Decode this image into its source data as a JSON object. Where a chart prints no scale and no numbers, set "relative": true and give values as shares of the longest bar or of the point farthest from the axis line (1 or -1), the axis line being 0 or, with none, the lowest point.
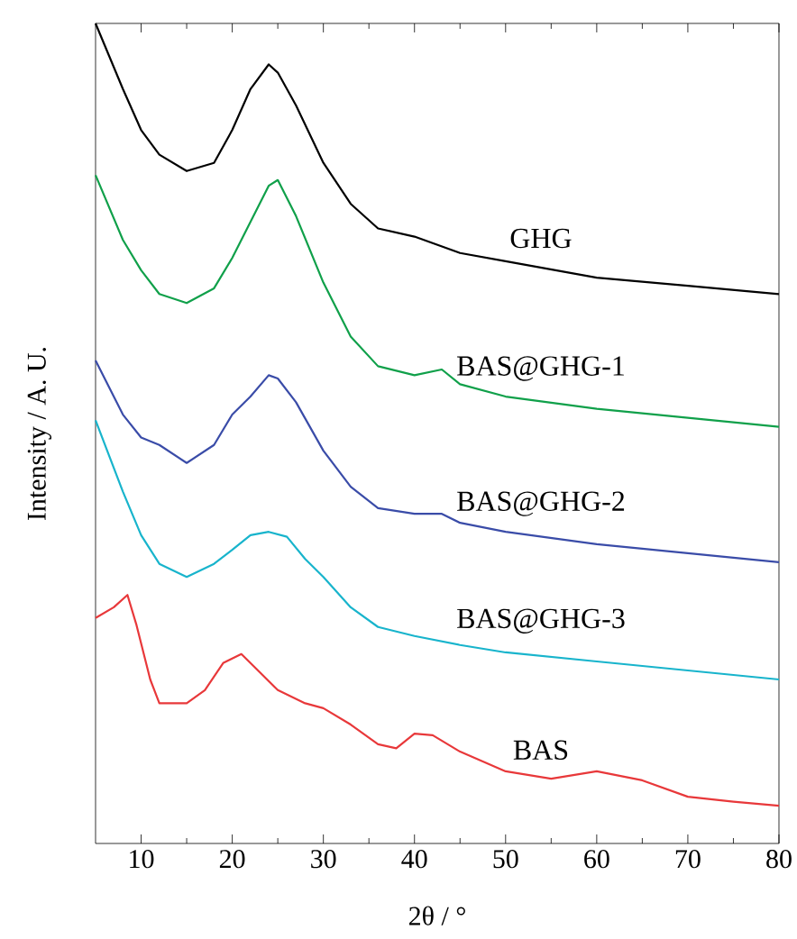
{
  "chart_data": {
    "type": "line",
    "xlabel": "2θ / °",
    "ylabel": "Intensity / A. U.",
    "relative": true,
    "xlim": [
      5,
      80
    ],
    "xticks": [
      10,
      20,
      30,
      40,
      50,
      60,
      70,
      80
    ],
    "grid": false,
    "marker": "none",
    "line_style": "solid",
    "series": [
      {
        "name": "GHG",
        "color": "#000000",
        "x": [
          5,
          8,
          10,
          12,
          15,
          18,
          20,
          22,
          24,
          25,
          27,
          30,
          33,
          36,
          40,
          45,
          50,
          60,
          70,
          80
        ],
        "values": [
          1.0,
          0.92,
          0.87,
          0.84,
          0.82,
          0.83,
          0.87,
          0.92,
          0.95,
          0.94,
          0.9,
          0.83,
          0.78,
          0.75,
          0.74,
          0.72,
          0.71,
          0.69,
          0.68,
          0.67
        ]
      },
      {
        "name": "BAS@GHG-1",
        "color": "#10a04a",
        "x": [
          5,
          8,
          10,
          12,
          15,
          18,
          20,
          22,
          24,
          25,
          27,
          30,
          33,
          36,
          40,
          43,
          45,
          50,
          60,
          70,
          80
        ],
        "values": [
          0.815,
          0.736,
          0.699,
          0.67,
          0.659,
          0.677,
          0.714,
          0.758,
          0.802,
          0.809,
          0.765,
          0.684,
          0.618,
          0.582,
          0.571,
          0.578,
          0.56,
          0.545,
          0.53,
          0.519,
          0.508
        ]
      },
      {
        "name": "BAS@GHG-2",
        "color": "#3a4ca8",
        "x": [
          5,
          8,
          10,
          12,
          15,
          18,
          20,
          22,
          24,
          25,
          27,
          30,
          33,
          36,
          40,
          43,
          45,
          50,
          60,
          70,
          80
        ],
        "values": [
          0.589,
          0.523,
          0.495,
          0.486,
          0.464,
          0.486,
          0.523,
          0.545,
          0.571,
          0.567,
          0.538,
          0.479,
          0.435,
          0.409,
          0.402,
          0.402,
          0.391,
          0.38,
          0.365,
          0.354,
          0.343
        ]
      },
      {
        "name": "BAS@GHG-3",
        "color": "#18b4cc",
        "x": [
          5,
          8,
          10,
          12,
          15,
          18,
          20,
          22,
          24,
          26,
          28,
          30,
          33,
          36,
          40,
          45,
          50,
          60,
          70,
          80
        ],
        "values": [
          0.516,
          0.429,
          0.376,
          0.341,
          0.325,
          0.341,
          0.358,
          0.376,
          0.38,
          0.374,
          0.347,
          0.325,
          0.288,
          0.264,
          0.253,
          0.242,
          0.233,
          0.222,
          0.211,
          0.2
        ]
      },
      {
        "name": "BAS",
        "color": "#e8383a",
        "x": [
          5,
          7,
          8.5,
          9.5,
          11,
          12,
          15,
          17,
          19,
          21,
          23,
          25,
          28,
          30,
          33,
          36,
          38,
          40,
          42,
          45,
          50,
          55,
          60,
          65,
          70,
          75,
          80
        ],
        "values": [
          0.275,
          0.288,
          0.303,
          0.266,
          0.2,
          0.171,
          0.171,
          0.187,
          0.22,
          0.231,
          0.209,
          0.187,
          0.171,
          0.165,
          0.145,
          0.121,
          0.116,
          0.134,
          0.132,
          0.112,
          0.088,
          0.079,
          0.088,
          0.077,
          0.057,
          0.051,
          0.046
        ]
      }
    ]
  }
}
